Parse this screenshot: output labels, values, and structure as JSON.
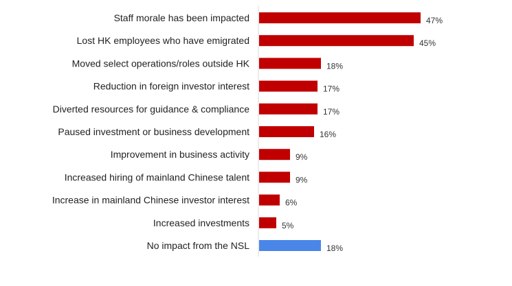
{
  "chart_data": {
    "type": "bar",
    "orientation": "horizontal",
    "title": "",
    "xlabel": "",
    "ylabel": "",
    "xlim": [
      0,
      50
    ],
    "grid": false,
    "legend": "none",
    "value_suffix": "%",
    "categories": [
      "Staff morale has been impacted",
      "Lost HK employees who have emigrated",
      "Moved select operations/roles outside HK",
      "Reduction in foreign investor interest",
      "Diverted resources for guidance & compliance",
      "Paused investment or business development",
      "Improvement in business activity",
      "Increased hiring of mainland Chinese talent",
      "Increase in mainland Chinese investor interest",
      "Increased investments",
      "No impact from the NSL"
    ],
    "values": [
      47,
      45,
      18,
      17,
      17,
      16,
      9,
      9,
      6,
      5,
      18
    ],
    "value_labels": [
      "47%",
      "45%",
      "18%",
      "17%",
      "17%",
      "16%",
      "9%",
      "9%",
      "6%",
      "5%",
      "18%"
    ],
    "colors": {
      "default": "#c00000",
      "highlight": "#4a86e8"
    },
    "highlight_index": 10
  }
}
